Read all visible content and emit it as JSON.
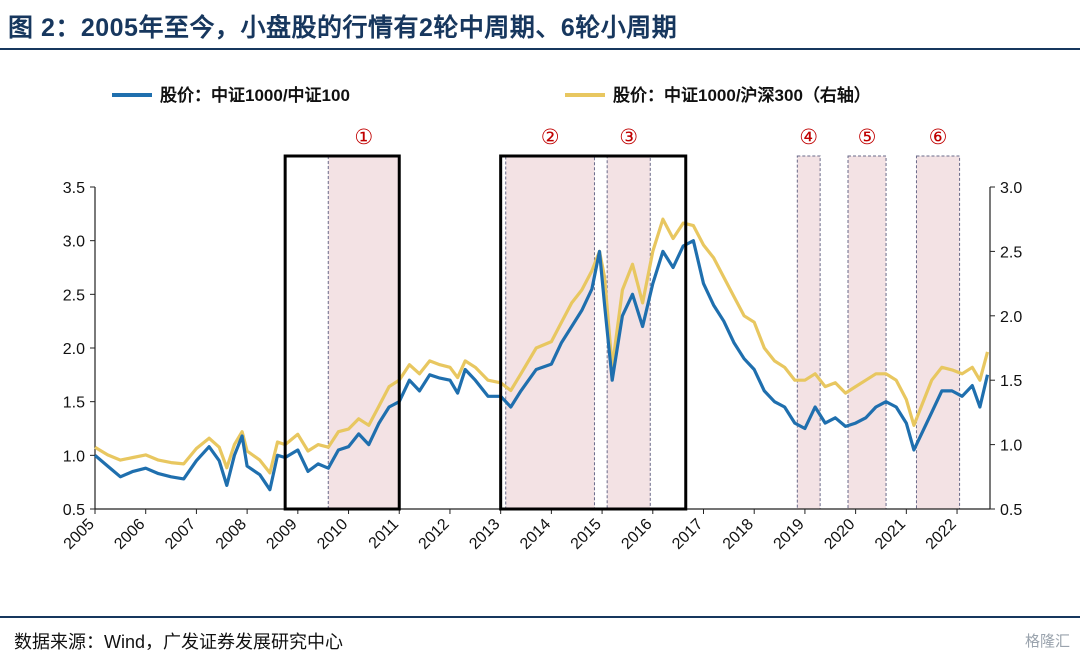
{
  "header": {
    "title": "图 2：2005年至今，小盘股的行情有2轮中周期、6轮小周期"
  },
  "footer": {
    "source": "数据来源：Wind，广发证券发展研究中心",
    "watermark": "格隆汇"
  },
  "colors": {
    "series_left": "#1f6fae",
    "series_right": "#e8c760",
    "title": "#17375e",
    "shade": "#f3e2e4",
    "marker": "#c00000"
  },
  "chart_data": {
    "type": "line",
    "title": "",
    "x_ticks": [
      "2005",
      "2006",
      "2007",
      "2008",
      "2009",
      "2010",
      "2011",
      "2012",
      "2013",
      "2014",
      "2015",
      "2016",
      "2017",
      "2018",
      "2019",
      "2020",
      "2021",
      "2022"
    ],
    "xlim": [
      2005.0,
      2022.65
    ],
    "y_left": {
      "lim": [
        0.5,
        3.5
      ],
      "ticks": [
        "0.5",
        "1.0",
        "1.5",
        "2.0",
        "2.5",
        "3.0",
        "3.5"
      ]
    },
    "y_right": {
      "lim": [
        0.5,
        3.0
      ],
      "ticks": [
        "0.5",
        "1.0",
        "1.5",
        "2.0",
        "2.5",
        "3.0"
      ]
    },
    "legend_position": "top",
    "series": [
      {
        "name": "股价：中证1000/中证100",
        "axis": "left",
        "points": [
          [
            2005.0,
            1.0
          ],
          [
            2005.25,
            0.9
          ],
          [
            2005.5,
            0.8
          ],
          [
            2005.75,
            0.85
          ],
          [
            2006.0,
            0.88
          ],
          [
            2006.25,
            0.83
          ],
          [
            2006.5,
            0.8
          ],
          [
            2006.75,
            0.78
          ],
          [
            2007.0,
            0.95
          ],
          [
            2007.25,
            1.08
          ],
          [
            2007.45,
            0.95
          ],
          [
            2007.6,
            0.72
          ],
          [
            2007.75,
            1.0
          ],
          [
            2007.9,
            1.18
          ],
          [
            2008.0,
            0.9
          ],
          [
            2008.25,
            0.82
          ],
          [
            2008.45,
            0.68
          ],
          [
            2008.6,
            1.0
          ],
          [
            2008.75,
            0.98
          ],
          [
            2009.0,
            1.05
          ],
          [
            2009.2,
            0.85
          ],
          [
            2009.4,
            0.92
          ],
          [
            2009.6,
            0.88
          ],
          [
            2009.8,
            1.05
          ],
          [
            2010.0,
            1.08
          ],
          [
            2010.2,
            1.2
          ],
          [
            2010.4,
            1.1
          ],
          [
            2010.6,
            1.3
          ],
          [
            2010.8,
            1.45
          ],
          [
            2011.0,
            1.5
          ],
          [
            2011.2,
            1.7
          ],
          [
            2011.4,
            1.6
          ],
          [
            2011.6,
            1.75
          ],
          [
            2011.8,
            1.72
          ],
          [
            2012.0,
            1.7
          ],
          [
            2012.15,
            1.58
          ],
          [
            2012.3,
            1.8
          ],
          [
            2012.5,
            1.7
          ],
          [
            2012.75,
            1.55
          ],
          [
            2013.0,
            1.55
          ],
          [
            2013.2,
            1.45
          ],
          [
            2013.4,
            1.6
          ],
          [
            2013.7,
            1.8
          ],
          [
            2014.0,
            1.85
          ],
          [
            2014.2,
            2.05
          ],
          [
            2014.4,
            2.2
          ],
          [
            2014.6,
            2.35
          ],
          [
            2014.8,
            2.55
          ],
          [
            2014.95,
            2.9
          ],
          [
            2015.05,
            2.4
          ],
          [
            2015.2,
            1.7
          ],
          [
            2015.4,
            2.3
          ],
          [
            2015.6,
            2.5
          ],
          [
            2015.8,
            2.2
          ],
          [
            2016.0,
            2.6
          ],
          [
            2016.2,
            2.9
          ],
          [
            2016.4,
            2.75
          ],
          [
            2016.6,
            2.95
          ],
          [
            2016.8,
            3.0
          ],
          [
            2017.0,
            2.6
          ],
          [
            2017.2,
            2.4
          ],
          [
            2017.4,
            2.25
          ],
          [
            2017.6,
            2.05
          ],
          [
            2017.8,
            1.9
          ],
          [
            2018.0,
            1.8
          ],
          [
            2018.2,
            1.6
          ],
          [
            2018.4,
            1.5
          ],
          [
            2018.6,
            1.45
          ],
          [
            2018.8,
            1.3
          ],
          [
            2019.0,
            1.25
          ],
          [
            2019.2,
            1.45
          ],
          [
            2019.4,
            1.3
          ],
          [
            2019.6,
            1.35
          ],
          [
            2019.8,
            1.27
          ],
          [
            2020.0,
            1.3
          ],
          [
            2020.2,
            1.35
          ],
          [
            2020.4,
            1.45
          ],
          [
            2020.6,
            1.5
          ],
          [
            2020.8,
            1.45
          ],
          [
            2021.0,
            1.3
          ],
          [
            2021.15,
            1.05
          ],
          [
            2021.3,
            1.2
          ],
          [
            2021.5,
            1.4
          ],
          [
            2021.7,
            1.6
          ],
          [
            2021.9,
            1.6
          ],
          [
            2022.1,
            1.55
          ],
          [
            2022.3,
            1.65
          ],
          [
            2022.45,
            1.45
          ],
          [
            2022.6,
            1.75
          ]
        ]
      },
      {
        "name": "股价：中证1000/沪深300（右轴）",
        "axis": "right",
        "points": [
          [
            2005.0,
            0.98
          ],
          [
            2005.25,
            0.92
          ],
          [
            2005.5,
            0.88
          ],
          [
            2005.75,
            0.9
          ],
          [
            2006.0,
            0.92
          ],
          [
            2006.25,
            0.88
          ],
          [
            2006.5,
            0.86
          ],
          [
            2006.75,
            0.85
          ],
          [
            2007.0,
            0.97
          ],
          [
            2007.25,
            1.05
          ],
          [
            2007.45,
            0.98
          ],
          [
            2007.6,
            0.82
          ],
          [
            2007.75,
            1.0
          ],
          [
            2007.9,
            1.1
          ],
          [
            2008.0,
            0.95
          ],
          [
            2008.25,
            0.88
          ],
          [
            2008.45,
            0.78
          ],
          [
            2008.6,
            1.02
          ],
          [
            2008.75,
            1.0
          ],
          [
            2009.0,
            1.08
          ],
          [
            2009.2,
            0.95
          ],
          [
            2009.4,
            1.0
          ],
          [
            2009.6,
            0.98
          ],
          [
            2009.8,
            1.1
          ],
          [
            2010.0,
            1.12
          ],
          [
            2010.2,
            1.2
          ],
          [
            2010.4,
            1.15
          ],
          [
            2010.6,
            1.3
          ],
          [
            2010.8,
            1.45
          ],
          [
            2011.0,
            1.5
          ],
          [
            2011.2,
            1.62
          ],
          [
            2011.4,
            1.55
          ],
          [
            2011.6,
            1.65
          ],
          [
            2011.8,
            1.62
          ],
          [
            2012.0,
            1.6
          ],
          [
            2012.15,
            1.52
          ],
          [
            2012.3,
            1.65
          ],
          [
            2012.5,
            1.6
          ],
          [
            2012.75,
            1.5
          ],
          [
            2013.0,
            1.48
          ],
          [
            2013.2,
            1.42
          ],
          [
            2013.4,
            1.55
          ],
          [
            2013.7,
            1.75
          ],
          [
            2014.0,
            1.8
          ],
          [
            2014.2,
            1.95
          ],
          [
            2014.4,
            2.1
          ],
          [
            2014.6,
            2.2
          ],
          [
            2014.8,
            2.35
          ],
          [
            2014.95,
            2.5
          ],
          [
            2015.05,
            2.3
          ],
          [
            2015.2,
            1.6
          ],
          [
            2015.4,
            2.2
          ],
          [
            2015.6,
            2.4
          ],
          [
            2015.8,
            2.1
          ],
          [
            2016.0,
            2.5
          ],
          [
            2016.2,
            2.75
          ],
          [
            2016.4,
            2.6
          ],
          [
            2016.6,
            2.72
          ],
          [
            2016.8,
            2.7
          ],
          [
            2017.0,
            2.55
          ],
          [
            2017.2,
            2.45
          ],
          [
            2017.4,
            2.3
          ],
          [
            2017.6,
            2.15
          ],
          [
            2017.8,
            2.0
          ],
          [
            2018.0,
            1.95
          ],
          [
            2018.2,
            1.75
          ],
          [
            2018.4,
            1.65
          ],
          [
            2018.6,
            1.6
          ],
          [
            2018.8,
            1.5
          ],
          [
            2019.0,
            1.5
          ],
          [
            2019.2,
            1.55
          ],
          [
            2019.4,
            1.45
          ],
          [
            2019.6,
            1.48
          ],
          [
            2019.8,
            1.4
          ],
          [
            2020.0,
            1.45
          ],
          [
            2020.2,
            1.5
          ],
          [
            2020.4,
            1.55
          ],
          [
            2020.6,
            1.55
          ],
          [
            2020.8,
            1.5
          ],
          [
            2021.0,
            1.35
          ],
          [
            2021.15,
            1.15
          ],
          [
            2021.3,
            1.3
          ],
          [
            2021.5,
            1.5
          ],
          [
            2021.7,
            1.6
          ],
          [
            2021.9,
            1.58
          ],
          [
            2022.1,
            1.55
          ],
          [
            2022.3,
            1.6
          ],
          [
            2022.45,
            1.5
          ],
          [
            2022.6,
            1.72
          ]
        ]
      }
    ],
    "cycles": [
      {
        "label": "①",
        "start": 2009.6,
        "end": 2011.0
      },
      {
        "label": "②",
        "start": 2013.1,
        "end": 2014.85
      },
      {
        "label": "③",
        "start": 2015.1,
        "end": 2015.95
      },
      {
        "label": "④",
        "start": 2018.85,
        "end": 2019.3
      },
      {
        "label": "⑤",
        "start": 2019.85,
        "end": 2020.6
      },
      {
        "label": "⑥",
        "start": 2021.2,
        "end": 2022.05
      }
    ],
    "medium_cycles": [
      {
        "start": 2008.75,
        "end": 2011.0
      },
      {
        "start": 2013.0,
        "end": 2016.65
      }
    ]
  }
}
